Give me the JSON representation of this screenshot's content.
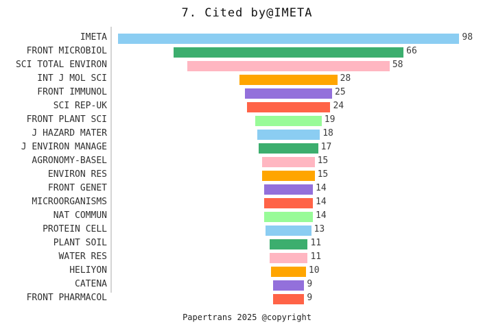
{
  "title": "7. Cited by@IMETA",
  "footer": "Papertrans 2025 @copyright",
  "chart_data": {
    "type": "bar",
    "subtype": "centered-funnel",
    "orientation": "horizontal",
    "title": "7. Cited by@IMETA",
    "xlabel": "",
    "ylabel": "",
    "legend": false,
    "grid": false,
    "value_labels": true,
    "xlim": [
      0,
      98
    ],
    "categories": [
      "IMETA",
      "FRONT MICROBIOL",
      "SCI TOTAL ENVIRON",
      "INT J MOL SCI",
      "FRONT IMMUNOL",
      "SCI REP-UK",
      "FRONT PLANT SCI",
      "J HAZARD MATER",
      "J ENVIRON MANAGE",
      "AGRONOMY-BASEL",
      "ENVIRON RES",
      "FRONT GENET",
      "MICROORGANISMS",
      "NAT COMMUN",
      "PROTEIN CELL",
      "PLANT SOIL",
      "WATER RES",
      "HELIYON",
      "CATENA",
      "FRONT PHARMACOL"
    ],
    "values": [
      98,
      66,
      58,
      28,
      25,
      24,
      19,
      18,
      17,
      15,
      15,
      14,
      14,
      14,
      13,
      11,
      11,
      10,
      9,
      9
    ],
    "palette": [
      "#8BCDF2",
      "#3CAE6E",
      "#FFB6C1",
      "#FFA500",
      "#9370DB",
      "#FF6347",
      "#98FB98"
    ],
    "axis_line_color": "#d4d4d4",
    "label_color": "#2f2f2f",
    "value_color": "#3a3a3a"
  }
}
